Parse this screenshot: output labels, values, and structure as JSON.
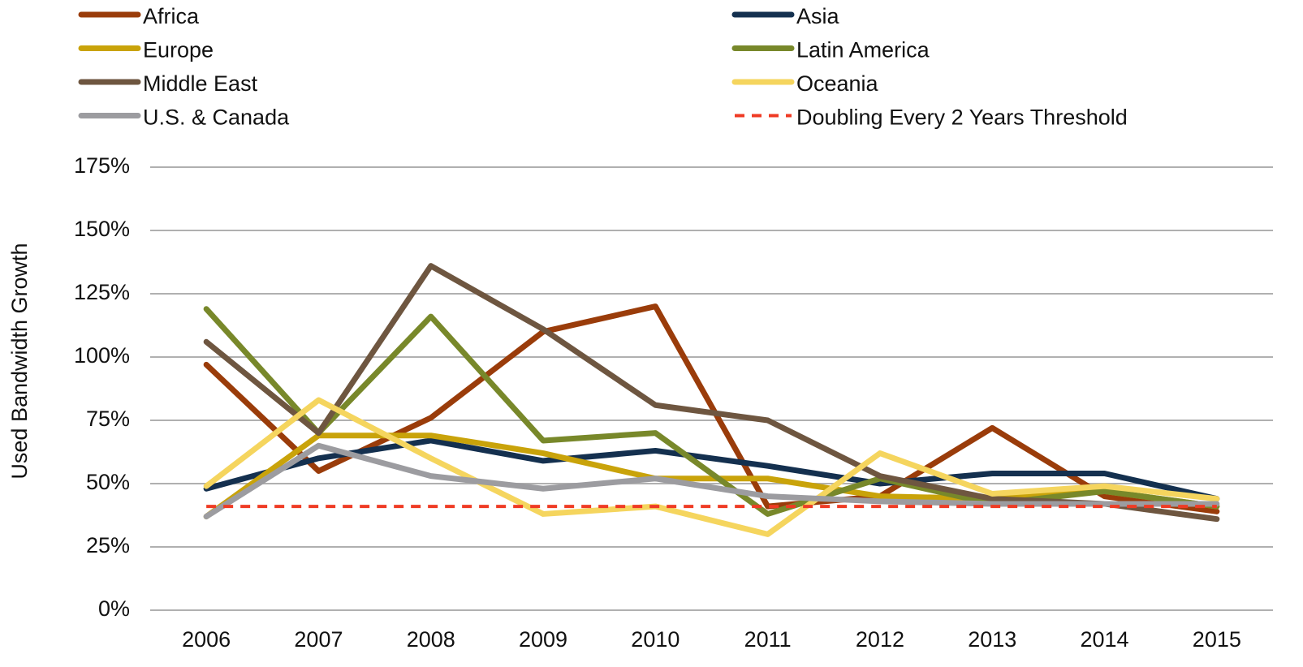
{
  "chart_data": {
    "type": "line",
    "y_label": "Used Bandwidth Growth",
    "categories": [
      "2006",
      "2007",
      "2008",
      "2009",
      "2010",
      "2011",
      "2012",
      "2013",
      "2014",
      "2015"
    ],
    "ylim": [
      0,
      175
    ],
    "yticks": [
      {
        "value": 0,
        "label": "0%"
      },
      {
        "value": 25,
        "label": "25%"
      },
      {
        "value": 50,
        "label": "50%"
      },
      {
        "value": 75,
        "label": "75%"
      },
      {
        "value": 100,
        "label": "100%"
      },
      {
        "value": 125,
        "label": "125%"
      },
      {
        "value": 150,
        "label": "150%"
      },
      {
        "value": 175,
        "label": "175%"
      }
    ],
    "grid": true,
    "legend": "top",
    "series": [
      {
        "name": "Africa",
        "color": "#9a3c0a",
        "values": [
          97,
          55,
          76,
          110,
          120,
          41,
          45,
          72,
          45,
          39
        ]
      },
      {
        "name": "Asia",
        "color": "#14304f",
        "values": [
          48,
          60,
          67,
          59,
          63,
          57,
          50,
          54,
          54,
          44
        ]
      },
      {
        "name": "Europe",
        "color": "#c9a30a",
        "values": [
          37,
          69,
          69,
          62,
          52,
          52,
          45,
          44,
          47,
          41
        ]
      },
      {
        "name": "Latin America",
        "color": "#78882a",
        "values": [
          119,
          70,
          116,
          67,
          70,
          38,
          52,
          42,
          47,
          41
        ]
      },
      {
        "name": "Middle East",
        "color": "#6e5640",
        "values": [
          106,
          70,
          136,
          111,
          81,
          75,
          53,
          44,
          42,
          36
        ]
      },
      {
        "name": "Oceania",
        "color": "#f5d55e",
        "values": [
          49,
          83,
          60,
          38,
          41,
          30,
          62,
          46,
          49,
          44
        ]
      },
      {
        "name": "U.S. & Canada",
        "color": "#9c9ca0",
        "values": [
          37,
          65,
          53,
          48,
          52,
          45,
          43,
          42,
          42,
          42
        ]
      },
      {
        "name": "Doubling Every 2 Years Threshold",
        "color": "#ef3b24",
        "dashed": true,
        "values": [
          41,
          41,
          41,
          41,
          41,
          41,
          41,
          41,
          41,
          41
        ]
      }
    ]
  }
}
